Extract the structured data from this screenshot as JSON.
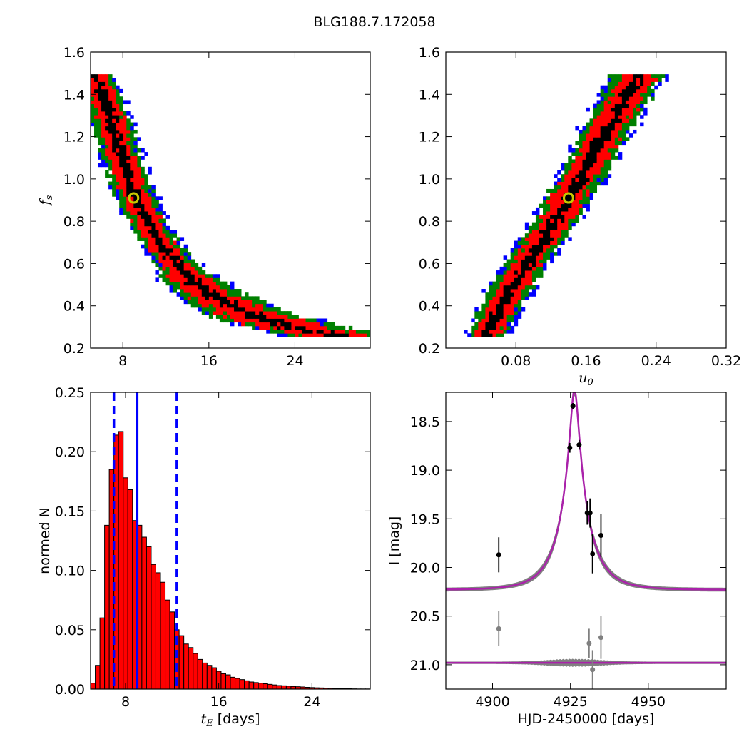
{
  "figure": {
    "title": "BLG188.7.172058"
  },
  "chart_data": [
    {
      "type": "heatmap",
      "panel": "top-left",
      "xlabel": "",
      "ylabel": "f_s",
      "xlim": [
        5,
        31
      ],
      "ylim": [
        0.2,
        1.6
      ],
      "xticks": [
        8,
        16,
        24
      ],
      "yticks": [
        0.2,
        0.4,
        0.6,
        0.8,
        1.0,
        1.2,
        1.4,
        1.6
      ],
      "xtick_labels": [
        "8",
        "16",
        "24"
      ],
      "ytick_labels": [
        "0.2",
        "0.4",
        "0.6",
        "0.8",
        "1.0",
        "1.2",
        "1.4",
        "1.6"
      ],
      "levels_colors": [
        "#0000ff",
        "#008000",
        "#ff0000",
        "#000000"
      ],
      "ridge": [
        [
          5.2,
          1.5
        ],
        [
          6.5,
          1.35
        ],
        [
          7.5,
          1.18
        ],
        [
          8.5,
          1.0
        ],
        [
          9.5,
          0.88
        ],
        [
          10.5,
          0.78
        ],
        [
          12,
          0.66
        ],
        [
          14,
          0.54
        ],
        [
          16,
          0.46
        ],
        [
          18,
          0.4
        ],
        [
          20,
          0.36
        ],
        [
          23,
          0.31
        ],
        [
          26,
          0.28
        ],
        [
          28,
          0.26
        ]
      ],
      "best_fit": {
        "x": 9.0,
        "y": 0.91
      }
    },
    {
      "type": "heatmap",
      "panel": "top-right",
      "xlabel": "u_0",
      "ylabel": "",
      "xlim": [
        0.0,
        0.32
      ],
      "ylim": [
        0.2,
        1.6
      ],
      "xticks": [
        0.08,
        0.16,
        0.24,
        0.32
      ],
      "yticks": [
        0.2,
        0.4,
        0.6,
        0.8,
        1.0,
        1.2,
        1.4,
        1.6
      ],
      "xtick_labels": [
        "0.08",
        "0.16",
        "0.24",
        "0.32"
      ],
      "ytick_labels": [
        "0.2",
        "0.4",
        "0.6",
        "0.8",
        "1.0",
        "1.2",
        "1.4",
        "1.6"
      ],
      "levels_colors": [
        "#0000ff",
        "#008000",
        "#ff0000",
        "#000000"
      ],
      "ridge": [
        [
          0.045,
          0.25
        ],
        [
          0.07,
          0.45
        ],
        [
          0.1,
          0.65
        ],
        [
          0.125,
          0.8
        ],
        [
          0.14,
          0.91
        ],
        [
          0.16,
          1.05
        ],
        [
          0.18,
          1.2
        ],
        [
          0.2,
          1.35
        ],
        [
          0.22,
          1.5
        ]
      ],
      "best_fit": {
        "x": 0.14,
        "y": 0.91
      }
    },
    {
      "type": "bar",
      "panel": "bottom-left",
      "xlabel": "t_E [days]",
      "ylabel": "normed N",
      "xlim": [
        5,
        29
      ],
      "ylim": [
        0,
        0.25
      ],
      "xticks": [
        8,
        16,
        24
      ],
      "yticks": [
        0.0,
        0.05,
        0.1,
        0.15,
        0.2,
        0.25
      ],
      "xtick_labels": [
        "8",
        "16",
        "24"
      ],
      "ytick_labels": [
        "0.00",
        "0.05",
        "0.10",
        "0.15",
        "0.20",
        "0.25"
      ],
      "bin_start": 5.0,
      "bin_width": 0.4,
      "values": [
        0.005,
        0.02,
        0.06,
        0.138,
        0.185,
        0.214,
        0.217,
        0.178,
        0.168,
        0.142,
        0.138,
        0.128,
        0.12,
        0.105,
        0.098,
        0.09,
        0.075,
        0.065,
        0.05,
        0.045,
        0.038,
        0.035,
        0.03,
        0.025,
        0.022,
        0.02,
        0.018,
        0.015,
        0.013,
        0.012,
        0.01,
        0.009,
        0.008,
        0.007,
        0.006,
        0.0055,
        0.005,
        0.0045,
        0.004,
        0.0035,
        0.003,
        0.0028,
        0.0025,
        0.0022,
        0.002,
        0.0018,
        0.0015,
        0.0013,
        0.0011,
        0.001,
        0.0008,
        0.0007,
        0.0006,
        0.0005,
        0.0004,
        0.0003,
        0.0002,
        0.0001,
        0.0001,
        0.0001
      ],
      "bar_color": "#ff0000",
      "median": 9.0,
      "interval": [
        7.0,
        12.4
      ],
      "line_color": "#0000ff"
    },
    {
      "type": "scatter",
      "panel": "bottom-right",
      "xlabel": "HJD-2450000 [days]",
      "ylabel": "I [mag]",
      "xlim": [
        4885,
        4975
      ],
      "ylim": [
        21.25,
        18.2
      ],
      "y_inverted": true,
      "xticks": [
        4900,
        4925,
        4950
      ],
      "yticks": [
        18.5,
        19.0,
        19.5,
        20.0,
        20.5,
        21.0
      ],
      "xtick_labels": [
        "4900",
        "4925",
        "4950"
      ],
      "ytick_labels": [
        "18.5",
        "19.0",
        "19.5",
        "20.0",
        "20.5",
        "21.0"
      ],
      "model": {
        "t0": 4926.3,
        "tE": 9.0,
        "u0": 0.14,
        "fs": 0.91,
        "m_base": 20.23,
        "color": "#aa22aa",
        "band_color": "#808080"
      },
      "residual_baseline": 20.98,
      "points": [
        {
          "x": 4902.0,
          "y": 19.87,
          "err": 0.18
        },
        {
          "x": 4924.8,
          "y": 18.77,
          "err": 0.05
        },
        {
          "x": 4925.8,
          "y": 18.34,
          "err": 0.03
        },
        {
          "x": 4927.8,
          "y": 18.74,
          "err": 0.05
        },
        {
          "x": 4930.4,
          "y": 19.44,
          "err": 0.12
        },
        {
          "x": 4931.3,
          "y": 19.44,
          "err": 0.15
        },
        {
          "x": 4932.1,
          "y": 19.86,
          "err": 0.2
        },
        {
          "x": 4934.8,
          "y": 19.67,
          "err": 0.22
        }
      ],
      "residuals": [
        {
          "x": 4902.0,
          "y": 20.63,
          "err": 0.18
        },
        {
          "x": 4931.0,
          "y": 20.78,
          "err": 0.15
        },
        {
          "x": 4932.1,
          "y": 21.05,
          "err": 0.2
        },
        {
          "x": 4934.8,
          "y": 20.72,
          "err": 0.22
        }
      ],
      "point_color": "#000000",
      "residual_color": "#808080"
    }
  ]
}
